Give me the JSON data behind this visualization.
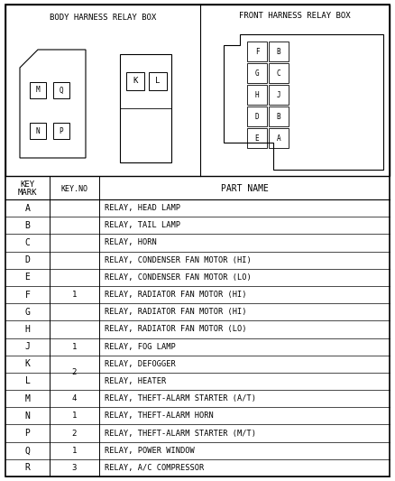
{
  "title_left": "BODY HARNESS RELAY BOX",
  "title_right": "FRONT HARNESS RELAY BOX",
  "rows": [
    [
      "A",
      "",
      "RELAY, HEAD LAMP"
    ],
    [
      "B",
      "",
      "RELAY, TAIL LAMP"
    ],
    [
      "C",
      "",
      "RELAY, HORN"
    ],
    [
      "D",
      "1",
      "RELAY, CONDENSER FAN MOTOR (HI)"
    ],
    [
      "E",
      "",
      "RELAY, CONDENSER FAN MOTOR (LO)"
    ],
    [
      "F",
      "",
      "RELAY, RADIATOR FAN MOTOR (HI)"
    ],
    [
      "G",
      "",
      "RELAY, RADIATOR FAN MOTOR (HI)"
    ],
    [
      "H",
      "",
      "RELAY, RADIATOR FAN MOTOR (LO)"
    ],
    [
      "J",
      "1",
      "RELAY, FOG LAMP"
    ],
    [
      "K",
      "",
      "RELAY, DEFOGGER"
    ],
    [
      "L",
      "2",
      "RELAY, HEATER"
    ],
    [
      "M",
      "4",
      "RELAY, THEFT-ALARM STARTER (A/T)"
    ],
    [
      "N",
      "1",
      "RELAY, THEFT-ALARM HORN"
    ],
    [
      "P",
      "2",
      "RELAY, THEFT-ALARM STARTER (M/T)"
    ],
    [
      "Q",
      "1",
      "RELAY, POWER WINDOW"
    ],
    [
      "R",
      "3",
      "RELAY, A/C COMPRESSOR"
    ]
  ],
  "key_no_groups": [
    [
      3,
      7,
      "1"
    ],
    [
      8,
      8,
      "1"
    ],
    [
      9,
      10,
      "2"
    ],
    [
      11,
      11,
      "4"
    ],
    [
      12,
      12,
      "1"
    ],
    [
      13,
      13,
      "2"
    ],
    [
      14,
      14,
      "1"
    ],
    [
      15,
      15,
      "3"
    ]
  ],
  "fh_labels": [
    [
      "F",
      "B"
    ],
    [
      "G",
      "C"
    ],
    [
      "H",
      "J"
    ],
    [
      "D",
      "B"
    ],
    [
      "E",
      "A"
    ]
  ],
  "bh_left_labels": [
    "M",
    "Q",
    "N",
    "P"
  ],
  "bh_right_labels": [
    "K",
    "L"
  ],
  "bg_color": "#ffffff"
}
